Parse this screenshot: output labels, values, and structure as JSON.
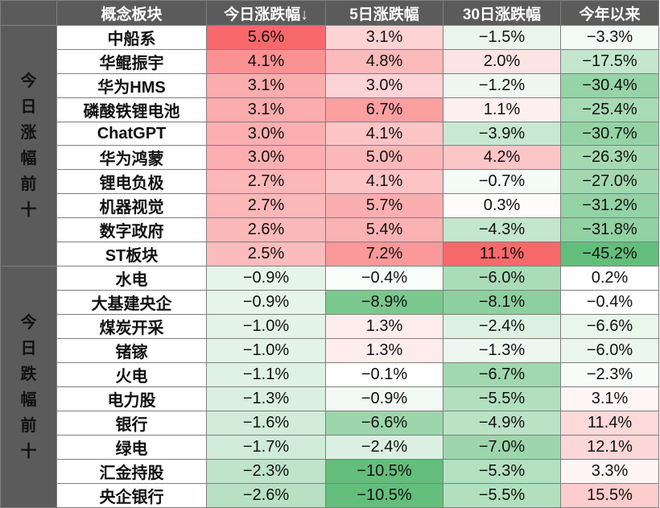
{
  "header": {
    "columns": [
      "概念板块",
      "今日涨跌幅↓",
      "5日涨跌幅",
      "30日涨跌幅",
      "今年以来"
    ]
  },
  "groups": [
    {
      "label": "今日涨幅前十",
      "direction": "up",
      "rows": [
        {
          "name": "中船系",
          "values": [
            5.6,
            3.1,
            -1.5,
            -3.3
          ]
        },
        {
          "name": "华鲲振宇",
          "values": [
            4.1,
            4.8,
            2.0,
            -17.5
          ]
        },
        {
          "name": "华为HMS",
          "values": [
            3.1,
            3.0,
            -1.2,
            -30.4
          ]
        },
        {
          "name": "磷酸铁锂电池",
          "values": [
            3.1,
            6.7,
            1.1,
            -25.4
          ]
        },
        {
          "name": "ChatGPT",
          "values": [
            3.0,
            4.1,
            -3.9,
            -30.7
          ]
        },
        {
          "name": "华为鸿蒙",
          "values": [
            3.0,
            5.0,
            4.2,
            -26.3
          ]
        },
        {
          "name": "锂电负极",
          "values": [
            2.7,
            4.1,
            -0.7,
            -27.0
          ]
        },
        {
          "name": "机器视觉",
          "values": [
            2.7,
            5.7,
            0.3,
            -31.2
          ]
        },
        {
          "name": "数字政府",
          "values": [
            2.6,
            5.4,
            -4.3,
            -31.8
          ]
        },
        {
          "name": "ST板块",
          "values": [
            2.5,
            7.2,
            11.1,
            -45.2
          ]
        }
      ]
    },
    {
      "label": "今日跌幅前十",
      "direction": "down",
      "rows": [
        {
          "name": "水电",
          "values": [
            -0.9,
            -0.4,
            -6.0,
            0.2
          ]
        },
        {
          "name": "大基建央企",
          "values": [
            -0.9,
            -8.9,
            -8.1,
            -0.4
          ]
        },
        {
          "name": "煤炭开采",
          "values": [
            -1.0,
            1.3,
            -2.4,
            -6.6
          ]
        },
        {
          "name": "锗镓",
          "values": [
            -1.0,
            1.3,
            -1.3,
            -6.0
          ]
        },
        {
          "name": "火电",
          "values": [
            -1.1,
            -0.1,
            -6.7,
            -2.3
          ]
        },
        {
          "name": "电力股",
          "values": [
            -1.3,
            -0.9,
            -5.5,
            3.1
          ]
        },
        {
          "name": "银行",
          "values": [
            -1.6,
            -6.6,
            -4.9,
            11.4
          ]
        },
        {
          "name": "绿电",
          "values": [
            -1.7,
            -2.4,
            -7.0,
            12.1
          ]
        },
        {
          "name": "汇金持股",
          "values": [
            -2.3,
            -10.5,
            -5.3,
            3.3
          ]
        },
        {
          "name": "央企银行",
          "values": [
            -2.6,
            -10.5,
            -5.5,
            15.5
          ]
        }
      ]
    }
  ],
  "colors": {
    "header_bg": "#5b5b5b",
    "header_text": "#ffffff",
    "up_label": "#c00000",
    "down_label": "#375623",
    "positive_max": "#f8696b",
    "negative_max": "#63be7b"
  },
  "chart_data": {
    "type": "table",
    "columns": [
      "今日涨跌幅↓",
      "5日涨跌幅",
      "30日涨跌幅",
      "今年以来"
    ],
    "unit": "%",
    "sort": "今日涨跌幅 descending"
  }
}
